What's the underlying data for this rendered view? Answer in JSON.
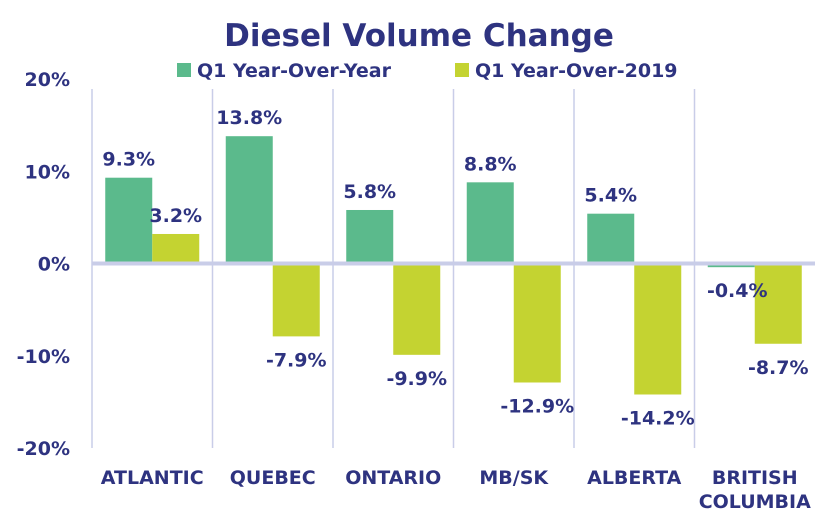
{
  "chart_data": {
    "type": "bar",
    "title": "Diesel Volume Change",
    "categories": [
      [
        "ATLANTIC"
      ],
      [
        "QUEBEC"
      ],
      [
        "ONTARIO"
      ],
      [
        "MB/SK"
      ],
      [
        "ALBERTA"
      ],
      [
        "BRITISH",
        "COLUMBIA"
      ]
    ],
    "series": [
      {
        "name": "Q1 Year-Over-Year",
        "color": "#5bba8c",
        "values": [
          9.3,
          13.8,
          5.8,
          8.8,
          5.4,
          -0.4
        ],
        "labels": [
          "9.3%",
          "13.8%",
          "5.8%",
          "8.8%",
          "5.4%",
          "-0.4%"
        ]
      },
      {
        "name": "Q1 Year-Over-2019",
        "color": "#c4d331",
        "values": [
          3.2,
          -7.9,
          -9.9,
          -12.9,
          -14.2,
          -8.7
        ],
        "labels": [
          "3.2%",
          "-7.9%",
          "-9.9%",
          "-12.9%",
          "-14.2%",
          "-8.7%"
        ]
      }
    ],
    "ylim": [
      -20,
      20
    ],
    "yticks": [
      20,
      10,
      0,
      -10,
      -20
    ],
    "ytick_labels": [
      "20%",
      "10%",
      "0%",
      "-10%",
      "-20%"
    ],
    "xlabel": "",
    "ylabel": "",
    "legend_position": "top",
    "zero_line_color": "#c9cde8",
    "separator_color": "#c9cde8",
    "text_color": "#2e3380"
  }
}
